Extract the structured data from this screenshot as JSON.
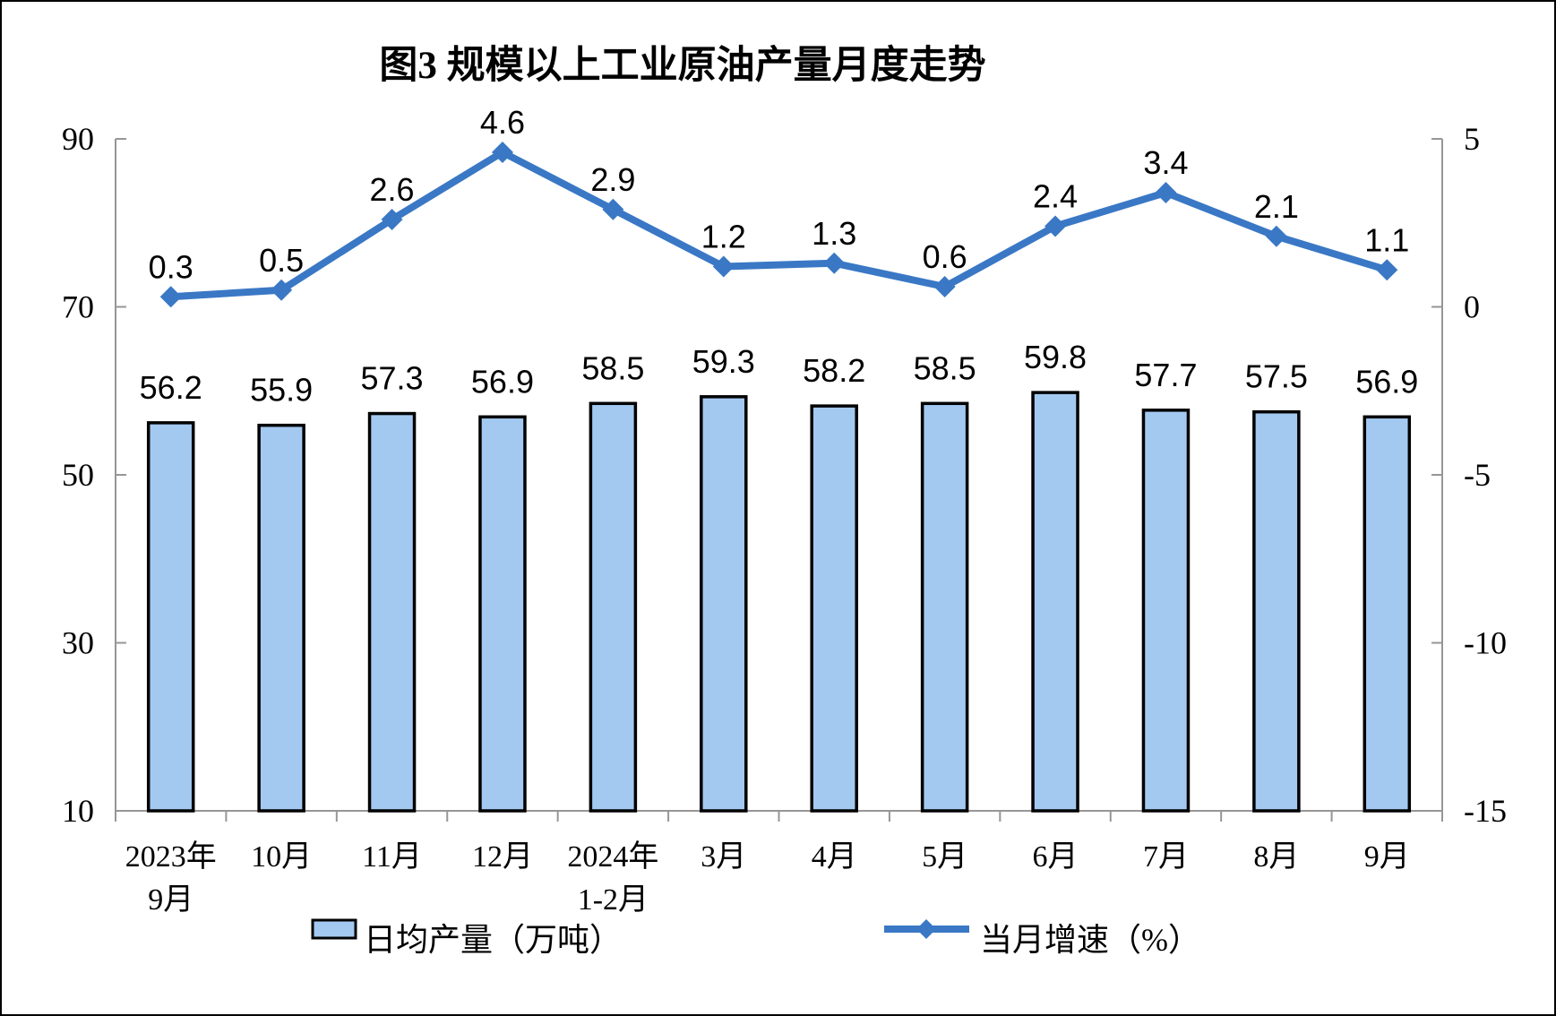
{
  "figure": {
    "title": "图3 规模以上工业原油产量月度走势",
    "background": "#FFFFFF",
    "border_color": "#000000"
  },
  "chart_data": {
    "type": "combo",
    "title": "图3 规模以上工业原油产量月度走势",
    "categories": [
      [
        "2023年",
        "9月"
      ],
      [
        "10月"
      ],
      [
        "11月"
      ],
      [
        "12月"
      ],
      [
        "2024年",
        "1-2月"
      ],
      [
        "3月"
      ],
      [
        "4月"
      ],
      [
        "5月"
      ],
      [
        "6月"
      ],
      [
        "7月"
      ],
      [
        "8月"
      ],
      [
        "9月"
      ]
    ],
    "series": [
      {
        "name": "日均产量（万吨）",
        "type": "bar",
        "axis": "left",
        "values": [
          56.2,
          55.9,
          57.3,
          56.9,
          58.5,
          59.3,
          58.2,
          58.5,
          59.8,
          57.7,
          57.5,
          56.9
        ]
      },
      {
        "name": "当月增速（%）",
        "type": "line",
        "axis": "right",
        "values": [
          0.3,
          0.5,
          2.6,
          4.6,
          2.9,
          1.2,
          1.3,
          0.6,
          2.4,
          3.4,
          2.1,
          1.1
        ]
      }
    ],
    "left_axis": {
      "min": 10,
      "max": 90,
      "ticks": [
        90,
        70,
        50,
        30,
        10
      ]
    },
    "right_axis": {
      "min": -15,
      "max": 5,
      "ticks": [
        5,
        0,
        -5,
        -10,
        -15
      ]
    },
    "grid": false,
    "legend_position": "bottom",
    "colors": {
      "bar_fill": "#A3C9F1",
      "bar_border": "#000000",
      "line": "#3A78C5",
      "axis": "#969696",
      "text": "#000000"
    }
  },
  "legend": {
    "items": [
      {
        "label": "日均产量（万吨）"
      },
      {
        "label": "当月增速（%）"
      }
    ]
  }
}
